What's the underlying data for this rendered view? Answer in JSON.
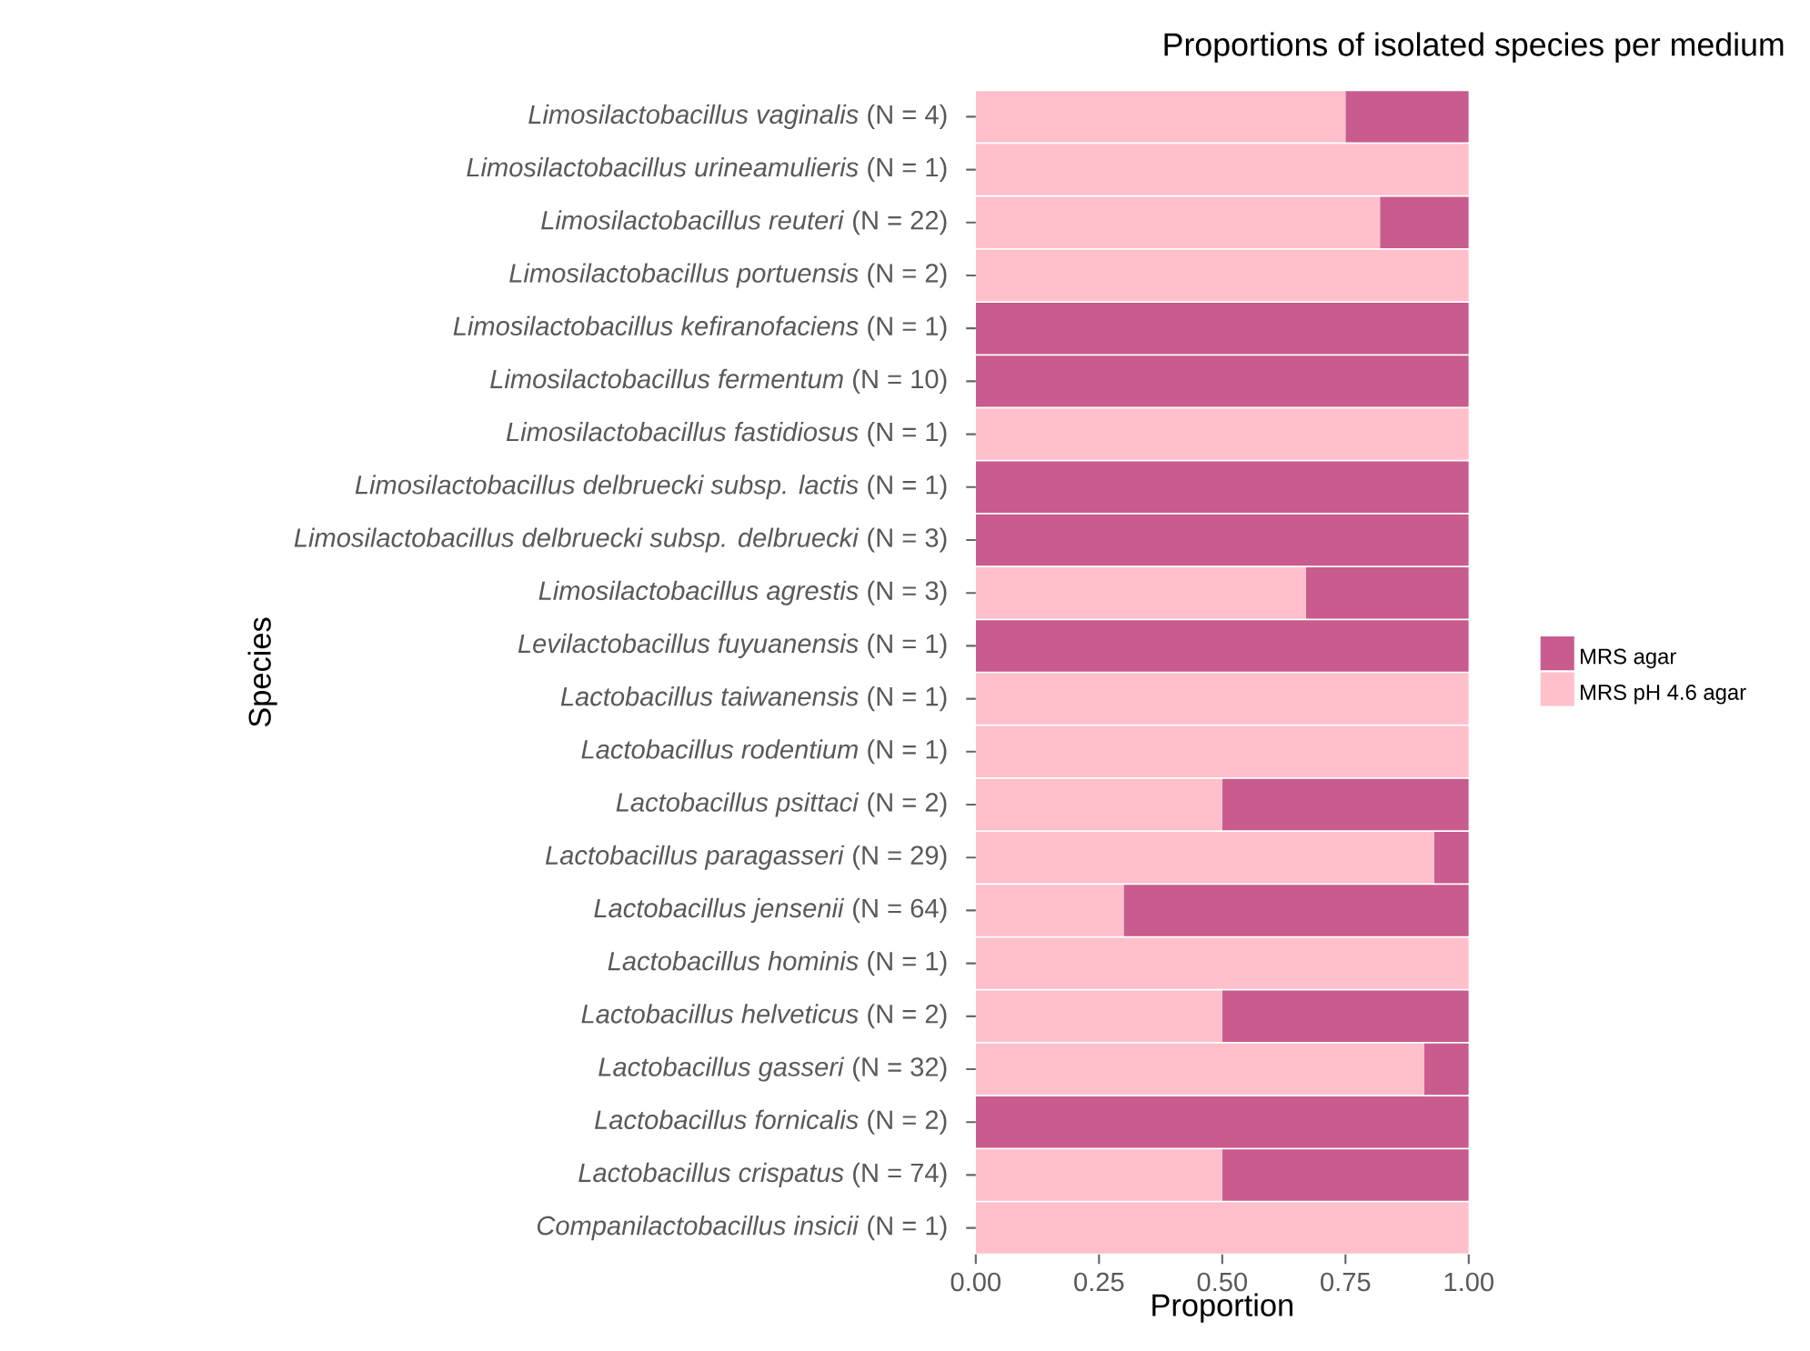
{
  "chart_data": {
    "type": "bar",
    "orientation": "horizontal",
    "stacked": true,
    "title": "Proportions of isolated species per medium",
    "xlabel": "Proportion",
    "ylabel": "Species",
    "categories": [
      "*Limosilactobacillus vaginalis* (N = 4)",
      "*Limosilactobacillus urineamulieris* (N = 1)",
      "*Limosilactobacillus reuteri* (N = 22)",
      "*Limosilactobacillus portuensis* (N = 2)",
      "*Limosilactobacillus kefiranofaciens* (N = 1)",
      "*Limosilactobacillus fermentum* (N = 10)",
      "*Limosilactobacillus fastidiosus* (N = 1)",
      "*Limosilactobacillus delbruecki subsp. lactis* (N = 1)",
      "*Limosilactobacillus delbruecki subsp. delbruecki* (N = 3)",
      "*Limosilactobacillus agrestis* (N = 3)",
      "*Levilactobacillus fuyuanensis* (N = 1)",
      "*Lactobacillus taiwanensis* (N = 1)",
      "*Lactobacillus rodentium* (N = 1)",
      "*Lactobacillus psittaci* (N = 2)",
      "*Lactobacillus paragasseri* (N = 29)",
      "*Lactobacillus jensenii* (N = 64)",
      "*Lactobacillus hominis* (N = 1)",
      "*Lactobacillus helveticus* (N = 2)",
      "*Lactobacillus gasseri* (N = 32)",
      "*Lactobacillus fornicalis* (N = 2)",
      "*Lactobacillus crispatus* (N = 74)",
      "*Companilactobacillus insicii* (N = 1)"
    ],
    "series": [
      {
        "name": "MRS pH 4.6 agar",
        "color": "#ffc0cb",
        "values": [
          0.75,
          1,
          0.82,
          1,
          0,
          0,
          1,
          0,
          0,
          0.67,
          0,
          1,
          1,
          0.5,
          0.93,
          0.3,
          1,
          0.5,
          0.91,
          0,
          0.5,
          1
        ]
      },
      {
        "name": "MRS agar",
        "color": "#c95b8e",
        "values": [
          0.25,
          0,
          0.18,
          0,
          1,
          1,
          0,
          1,
          1,
          0.33,
          1,
          0,
          0,
          0.5,
          0.07,
          0.7,
          0,
          0.5,
          0.09,
          1,
          0.5,
          0
        ]
      }
    ],
    "xlim": [
      0,
      1
    ],
    "xticks": [
      {
        "value": 0,
        "label": "0.00"
      },
      {
        "value": 0.25,
        "label": "0.25"
      },
      {
        "value": 0.5,
        "label": "0.50"
      },
      {
        "value": 0.75,
        "label": "0.75"
      },
      {
        "value": 1,
        "label": "1.00"
      }
    ],
    "legend": "right",
    "grid": false
  }
}
